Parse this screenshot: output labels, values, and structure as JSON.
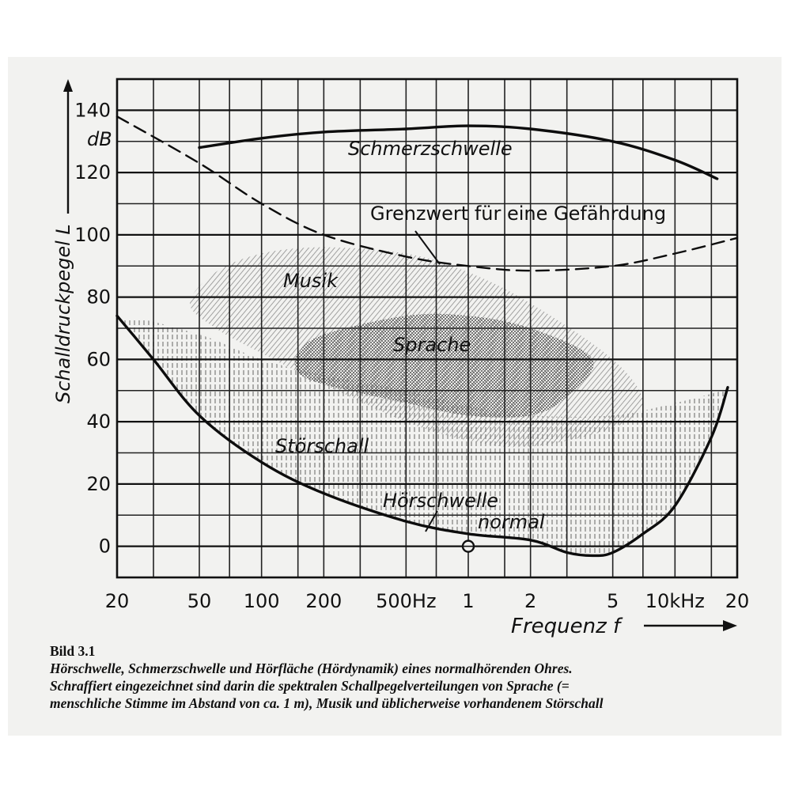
{
  "chart_data": {
    "type": "line",
    "x_scale": "log",
    "xlim_hz": [
      20,
      20000
    ],
    "ylim": [
      -10,
      150
    ],
    "grid": true,
    "ylabel": "Schalldruckpegel L",
    "y_unit": "dB",
    "xlabel": "Frequenz f",
    "y_ticks": [
      0,
      20,
      40,
      60,
      80,
      100,
      120,
      140
    ],
    "x_ticks": [
      {
        "hz": 20,
        "label": "20"
      },
      {
        "hz": 50,
        "label": "50"
      },
      {
        "hz": 100,
        "label": "100"
      },
      {
        "hz": 200,
        "label": "200"
      },
      {
        "hz": 500,
        "label": "500Hz"
      },
      {
        "hz": 1000,
        "label": "1"
      },
      {
        "hz": 2000,
        "label": "2"
      },
      {
        "hz": 5000,
        "label": "5"
      },
      {
        "hz": 10000,
        "label": "10kHz"
      },
      {
        "hz": 20000,
        "label": "20"
      }
    ],
    "series": [
      {
        "name": "Schmerzschwelle",
        "style": "solid",
        "points": [
          [
            50,
            128
          ],
          [
            100,
            131
          ],
          [
            200,
            133
          ],
          [
            500,
            134
          ],
          [
            1000,
            135
          ],
          [
            2000,
            134
          ],
          [
            5000,
            130
          ],
          [
            10000,
            124
          ],
          [
            16000,
            118
          ]
        ]
      },
      {
        "name": "Grenzwert für eine Gefährdung",
        "style": "dashed",
        "points": [
          [
            20,
            138
          ],
          [
            50,
            123
          ],
          [
            100,
            110
          ],
          [
            200,
            100
          ],
          [
            500,
            93
          ],
          [
            1000,
            90
          ],
          [
            2000,
            88.5
          ],
          [
            5000,
            90
          ],
          [
            10000,
            94
          ],
          [
            20000,
            99
          ]
        ]
      },
      {
        "name": "Hörschwelle normal",
        "style": "solid",
        "points": [
          [
            20,
            74
          ],
          [
            30,
            60
          ],
          [
            50,
            42
          ],
          [
            100,
            27
          ],
          [
            200,
            17
          ],
          [
            500,
            8
          ],
          [
            1000,
            4
          ],
          [
            2000,
            2
          ],
          [
            3000,
            -2
          ],
          [
            4000,
            -3
          ],
          [
            5000,
            -2
          ],
          [
            7000,
            4
          ],
          [
            10000,
            13
          ],
          [
            15000,
            35
          ],
          [
            18000,
            51
          ]
        ]
      }
    ],
    "regions": [
      {
        "name": "Musik",
        "outline": [
          [
            45,
            78
          ],
          [
            60,
            88
          ],
          [
            100,
            94
          ],
          [
            200,
            96
          ],
          [
            500,
            94
          ],
          [
            1000,
            88
          ],
          [
            2000,
            78
          ],
          [
            5000,
            60
          ],
          [
            7000,
            46
          ],
          [
            5000,
            38
          ],
          [
            2000,
            32
          ],
          [
            1000,
            34
          ],
          [
            500,
            40
          ],
          [
            200,
            52
          ],
          [
            100,
            62
          ],
          [
            60,
            70
          ]
        ]
      },
      {
        "name": "Sprache",
        "outline": [
          [
            150,
            62
          ],
          [
            200,
            68
          ],
          [
            500,
            74
          ],
          [
            1000,
            74
          ],
          [
            2000,
            70
          ],
          [
            4000,
            60
          ],
          [
            3000,
            48
          ],
          [
            2000,
            42
          ],
          [
            1000,
            42
          ],
          [
            500,
            46
          ],
          [
            200,
            52
          ],
          [
            150,
            56
          ]
        ]
      },
      {
        "name": "Störschall",
        "outline": [
          [
            22,
            73
          ],
          [
            50,
            68
          ],
          [
            100,
            60
          ],
          [
            200,
            55
          ],
          [
            500,
            50
          ],
          [
            1000,
            45
          ],
          [
            2000,
            42
          ],
          [
            5000,
            42
          ],
          [
            10000,
            46
          ],
          [
            17000,
            50
          ],
          [
            18000,
            51
          ],
          [
            15000,
            35
          ],
          [
            10000,
            13
          ],
          [
            7000,
            4
          ],
          [
            5000,
            -2
          ],
          [
            3000,
            -2
          ],
          [
            2000,
            2
          ],
          [
            1000,
            4
          ],
          [
            500,
            8
          ],
          [
            200,
            17
          ],
          [
            100,
            27
          ],
          [
            50,
            42
          ],
          [
            30,
            60
          ]
        ]
      }
    ],
    "marker": {
      "hz": 1000,
      "db": 0
    }
  },
  "annotations": {
    "schmerz": "Schmerzschwelle",
    "grenz": "Grenzwert für eine Gefährdung",
    "musik": "Musik",
    "sprache": "Sprache",
    "stoer": "Störschall",
    "hoer1": "Hörschwelle",
    "hoer2": "normal"
  },
  "caption": {
    "label": "Bild 3.1",
    "line1": "Hörschwelle, Schmerzschwelle und Hörfläche (Hördynamik) eines normalhörenden Ohres.",
    "line2": "Schraffiert eingezeichnet sind darin die spektralen Schallpegelverteilungen von Sprache (=",
    "line3": "menschliche Stimme im Abstand von ca. 1 m), Musik und üblicherweise vorhandenem Störschall"
  }
}
